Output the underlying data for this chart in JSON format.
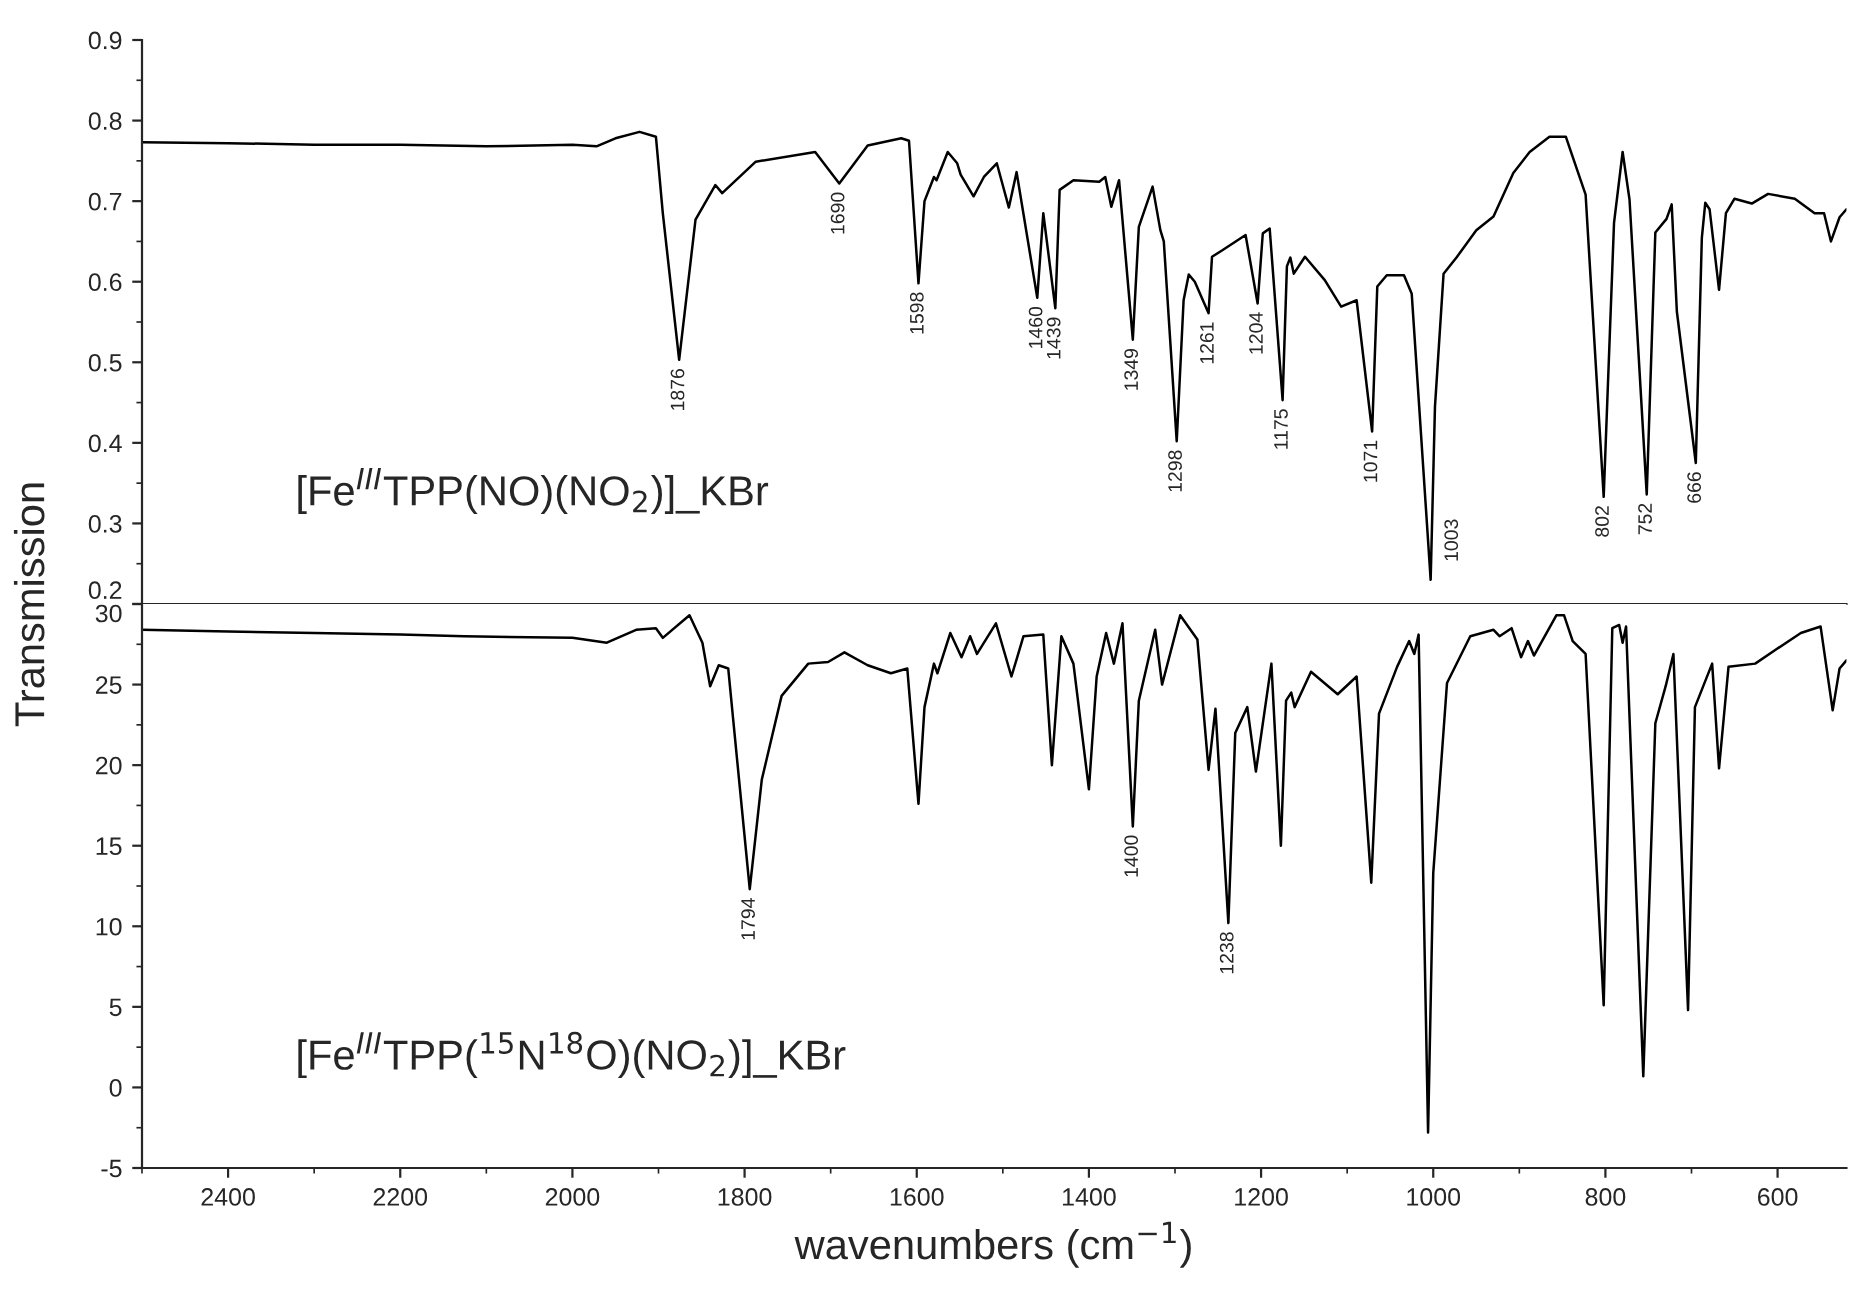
{
  "chart_data": [
    {
      "type": "line",
      "ylabel": "Transmission",
      "x": [
        2500,
        2400,
        2300,
        2200,
        2100,
        2000,
        1972,
        1950,
        1922,
        1903,
        1895,
        1876,
        1857,
        1834,
        1826,
        1787,
        1718,
        1690,
        1657,
        1618,
        1609,
        1598,
        1591,
        1580,
        1577,
        1564,
        1553,
        1549,
        1534,
        1522,
        1507,
        1493,
        1484,
        1460,
        1453,
        1439,
        1434,
        1418,
        1388,
        1381,
        1374,
        1365,
        1349,
        1342,
        1326,
        1317,
        1313,
        1298,
        1290,
        1284,
        1277,
        1261,
        1257,
        1245,
        1218,
        1204,
        1198,
        1190,
        1175,
        1170,
        1166,
        1162,
        1149,
        1126,
        1107,
        1089,
        1071,
        1065,
        1054,
        1034,
        1025,
        1003,
        998,
        988,
        973,
        950,
        930,
        907,
        888,
        865,
        846,
        838,
        823,
        802,
        790,
        780,
        772,
        752,
        742,
        729,
        723,
        717,
        695,
        688,
        684,
        679,
        668,
        660,
        650,
        630,
        611,
        580,
        557,
        546,
        538,
        528,
        520
      ],
      "series": [
        {
          "color": "#000000",
          "values": [
            0.773,
            0.772,
            0.77,
            0.77,
            0.768,
            0.77,
            0.768,
            0.778,
            0.786,
            0.78,
            0.685,
            0.503,
            0.677,
            0.72,
            0.71,
            0.749,
            0.761,
            0.722,
            0.769,
            0.778,
            0.775,
            0.598,
            0.7,
            0.73,
            0.726,
            0.761,
            0.747,
            0.733,
            0.706,
            0.73,
            0.747,
            0.692,
            0.736,
            0.58,
            0.685,
            0.567,
            0.714,
            0.726,
            0.724,
            0.73,
            0.693,
            0.726,
            0.528,
            0.668,
            0.718,
            0.664,
            0.65,
            0.402,
            0.577,
            0.609,
            0.6,
            0.561,
            0.631,
            0.639,
            0.658,
            0.573,
            0.66,
            0.666,
            0.453,
            0.619,
            0.63,
            0.61,
            0.631,
            0.602,
            0.569,
            0.577,
            0.414,
            0.594,
            0.608,
            0.608,
            0.585,
            0.23,
            0.445,
            0.61,
            0.63,
            0.664,
            0.681,
            0.735,
            0.761,
            0.78,
            0.78,
            0.755,
            0.708,
            0.333,
            0.673,
            0.761,
            0.702,
            0.336,
            0.661,
            0.678,
            0.696,
            0.563,
            0.375,
            0.654,
            0.698,
            0.69,
            0.59,
            0.685,
            0.703,
            0.697,
            0.709,
            0.703,
            0.685,
            0.685,
            0.65,
            0.68,
            0.69
          ]
        }
      ],
      "xlim": [
        2500,
        520
      ],
      "xticks": [
        2400,
        2200,
        2000,
        1800,
        1600,
        1400,
        1200,
        1000,
        800,
        600
      ],
      "ylim": [
        0.2,
        0.9
      ],
      "yticks": [
        0.2,
        0.3,
        0.4,
        0.5,
        0.6,
        0.7,
        0.8,
        0.9
      ],
      "tick_labels": "y",
      "annotations": [
        "[Fe$^{III}$TPP(NO)(NO$_{2}$)]_KBr",
        {
          "text": "1876",
          "x": 1876,
          "y": 0.503
        },
        {
          "text": "1690",
          "x": 1690,
          "y": 0.722
        },
        {
          "text": "1598",
          "x": 1598,
          "y": 0.598
        },
        {
          "text": "1460",
          "x": 1460,
          "y": 0.58
        },
        {
          "text": "1439",
          "x": 1439,
          "y": 0.567
        },
        {
          "text": "1349",
          "x": 1349,
          "y": 0.528
        },
        {
          "text": "1298",
          "x": 1298,
          "y": 0.402
        },
        {
          "text": "1261",
          "x": 1261,
          "y": 0.561
        },
        {
          "text": "1204",
          "x": 1204,
          "y": 0.573
        },
        {
          "text": "1175",
          "x": 1175,
          "y": 0.453
        },
        {
          "text": "1071",
          "x": 1071,
          "y": 0.414
        },
        {
          "text": "1003",
          "x": 1003,
          "y": 0.23
        },
        {
          "text": "802",
          "x": 802,
          "y": 0.333
        },
        {
          "text": "752",
          "x": 752,
          "y": 0.336
        },
        {
          "text": "666",
          "x": 695,
          "y": 0.375
        }
      ]
    },
    {
      "type": "line",
      "xlabel": "wavenumbers (cm$^{−1}$)",
      "x": [
        2500,
        2400,
        2300,
        2200,
        2126,
        2000,
        1960,
        1926,
        1903,
        1895,
        1864,
        1849,
        1840,
        1830,
        1819,
        1813,
        1794,
        1780,
        1757,
        1726,
        1703,
        1684,
        1657,
        1630,
        1611,
        1598,
        1591,
        1580,
        1576,
        1561,
        1548,
        1538,
        1530,
        1508,
        1490,
        1476,
        1453,
        1443,
        1432,
        1418,
        1400,
        1391,
        1380,
        1371,
        1361,
        1349,
        1342,
        1323,
        1315,
        1294,
        1274,
        1261,
        1253,
        1238,
        1230,
        1216,
        1206,
        1188,
        1177,
        1171,
        1165,
        1161,
        1142,
        1111,
        1089,
        1072,
        1063,
        1042,
        1028,
        1022,
        1017,
        1006,
        1000,
        984,
        957,
        930,
        923,
        909,
        898,
        890,
        883,
        857,
        848,
        838,
        823,
        802,
        792,
        784,
        780,
        776,
        756,
        742,
        730,
        721,
        704,
        696,
        676,
        668,
        657,
        626,
        604,
        573,
        550,
        536,
        528,
        520
      ],
      "series": [
        {
          "color": "#000000",
          "values": [
            28.4,
            28.3,
            28.2,
            28.1,
            28.0,
            27.9,
            27.6,
            28.4,
            28.5,
            27.9,
            29.3,
            27.6,
            24.9,
            26.2,
            26.0,
            22.7,
            12.3,
            19.1,
            24.3,
            26.3,
            26.4,
            27.0,
            26.2,
            25.7,
            26.0,
            17.6,
            23.6,
            26.3,
            25.7,
            28.2,
            26.7,
            28.0,
            26.9,
            28.8,
            25.5,
            28.0,
            28.1,
            20.0,
            28.0,
            26.3,
            18.5,
            25.5,
            28.2,
            26.3,
            28.8,
            16.2,
            24.0,
            28.4,
            25.0,
            29.3,
            27.8,
            19.7,
            23.5,
            10.2,
            22.0,
            23.6,
            19.6,
            26.3,
            15.0,
            24.0,
            24.5,
            23.6,
            25.8,
            24.4,
            25.5,
            12.7,
            23.2,
            26.1,
            27.7,
            26.9,
            28.1,
            -2.8,
            13.3,
            25.1,
            28.0,
            28.4,
            28.0,
            28.5,
            26.7,
            27.7,
            26.8,
            29.3,
            29.3,
            27.7,
            26.9,
            5.1,
            28.5,
            28.7,
            27.6,
            28.6,
            0.7,
            22.6,
            24.9,
            26.9,
            4.8,
            23.6,
            26.3,
            19.8,
            26.1,
            26.3,
            27.1,
            28.2,
            28.6,
            23.4,
            26.0,
            26.5
          ]
        }
      ],
      "xlim": [
        2500,
        520
      ],
      "xticks": [
        2400,
        2200,
        2000,
        1800,
        1600,
        1400,
        1200,
        1000,
        800,
        600
      ],
      "ylim": [
        -5,
        30
      ],
      "yticks": [
        -5,
        0,
        5,
        10,
        15,
        20,
        25,
        30
      ],
      "annotations": [
        "[Fe$^{III}$TPP($^{15}$N$^{18}$O)(NO$_{2}$)]_KBr",
        {
          "text": "1794",
          "x": 1794,
          "y": 12.3
        },
        {
          "text": "1400",
          "x": 1349,
          "y": 16.2
        },
        {
          "text": "1238",
          "x": 1238,
          "y": 10.2
        }
      ]
    }
  ]
}
